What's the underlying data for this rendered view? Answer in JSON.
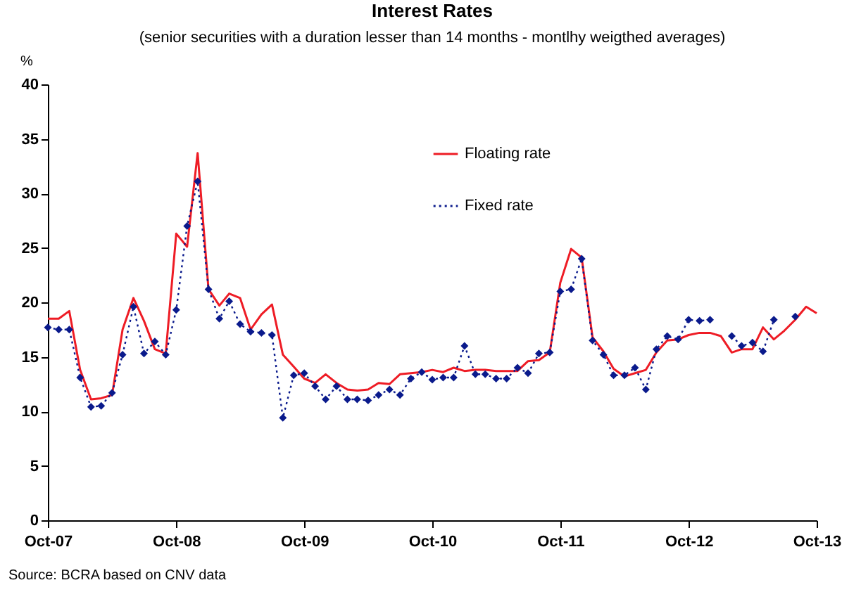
{
  "chart_data": {
    "type": "line",
    "title": "Interest Rates",
    "subtitle": "(senior securities with a duration lesser than 14 months - montlhy weigthed averages)",
    "ylabel": "%",
    "annotations": [
      "Source: BCRA based on CNV data"
    ],
    "x": [
      "2007-10",
      "2007-11",
      "2007-12",
      "2008-01",
      "2008-02",
      "2008-03",
      "2008-04",
      "2008-05",
      "2008-06",
      "2008-07",
      "2008-08",
      "2008-09",
      "2008-10",
      "2008-11",
      "2008-12",
      "2009-01",
      "2009-02",
      "2009-03",
      "2009-04",
      "2009-05",
      "2009-06",
      "2009-07",
      "2009-08",
      "2009-09",
      "2009-10",
      "2009-11",
      "2009-12",
      "2010-01",
      "2010-02",
      "2010-03",
      "2010-04",
      "2010-05",
      "2010-06",
      "2010-07",
      "2010-08",
      "2010-09",
      "2010-10",
      "2010-11",
      "2010-12",
      "2011-01",
      "2011-02",
      "2011-03",
      "2011-04",
      "2011-05",
      "2011-06",
      "2011-07",
      "2011-08",
      "2011-09",
      "2011-10",
      "2011-11",
      "2011-12",
      "2012-01",
      "2012-02",
      "2012-03",
      "2012-04",
      "2012-05",
      "2012-06",
      "2012-07",
      "2012-08",
      "2012-09",
      "2012-10",
      "2012-11",
      "2012-12",
      "2013-01",
      "2013-02",
      "2013-03",
      "2013-04",
      "2013-05",
      "2013-06",
      "2013-07",
      "2013-08",
      "2013-09",
      "2013-10"
    ],
    "series": [
      {
        "name": "Floating rate",
        "color": "#ee1c25",
        "line_style": "solid",
        "marker": "none",
        "values": [
          18.5,
          18.5,
          19.2,
          13.8,
          11.1,
          11.2,
          11.5,
          17.5,
          20.4,
          18.3,
          15.7,
          15.3,
          26.3,
          25.1,
          33.7,
          21.2,
          19.7,
          20.8,
          20.4,
          17.5,
          18.9,
          19.8,
          15.2,
          14.1,
          13.0,
          12.6,
          13.4,
          12.6,
          12.0,
          11.9,
          12.0,
          12.6,
          12.5,
          13.4,
          13.5,
          13.6,
          13.8,
          13.6,
          14.0,
          13.7,
          13.8,
          13.8,
          13.7,
          13.7,
          13.7,
          14.6,
          14.7,
          15.4,
          21.8,
          24.9,
          24.1,
          16.8,
          15.5,
          13.9,
          13.2,
          13.5,
          13.8,
          15.4,
          16.5,
          16.6,
          17.0,
          17.2,
          17.2,
          16.9,
          15.4,
          15.7,
          15.7,
          17.7,
          16.6,
          17.4,
          18.4,
          19.6,
          19.0
        ]
      },
      {
        "name": "Fixed rate",
        "color": "#0a1a8c",
        "line_style": "dotted",
        "marker": "diamond",
        "values": [
          17.7,
          17.5,
          17.5,
          13.1,
          10.4,
          10.5,
          11.7,
          15.2,
          19.6,
          15.3,
          16.4,
          15.2,
          19.3,
          27.0,
          31.1,
          21.2,
          18.5,
          20.1,
          18.0,
          17.3,
          17.2,
          17.0,
          9.4,
          13.3,
          13.5,
          12.3,
          11.1,
          12.3,
          11.1,
          11.1,
          11.0,
          11.5,
          12.0,
          11.5,
          13.0,
          13.6,
          12.9,
          13.1,
          13.1,
          16.0,
          13.4,
          13.4,
          13.0,
          13.0,
          14.0,
          13.5,
          15.3,
          15.4,
          21.0,
          21.2,
          24.0,
          16.5,
          15.2,
          13.3,
          13.3,
          14.0,
          12.0,
          15.7,
          16.9,
          16.6,
          18.4,
          18.3,
          18.4,
          null,
          16.9,
          16.0,
          16.3,
          15.5,
          18.4,
          null,
          18.7,
          null,
          null
        ]
      }
    ],
    "xlim": [
      "2007-10",
      "2013-10"
    ],
    "xticks": [
      {
        "value": "2007-10",
        "label": "Oct-07"
      },
      {
        "value": "2008-10",
        "label": "Oct-08"
      },
      {
        "value": "2009-10",
        "label": "Oct-09"
      },
      {
        "value": "2010-10",
        "label": "Oct-10"
      },
      {
        "value": "2011-10",
        "label": "Oct-11"
      },
      {
        "value": "2012-10",
        "label": "Oct-12"
      },
      {
        "value": "2013-10",
        "label": "Oct-13"
      }
    ],
    "ylim": [
      0,
      40
    ],
    "yticks": [
      0,
      5,
      10,
      15,
      20,
      25,
      30,
      35,
      40
    ],
    "grid": false,
    "legend": "top"
  }
}
